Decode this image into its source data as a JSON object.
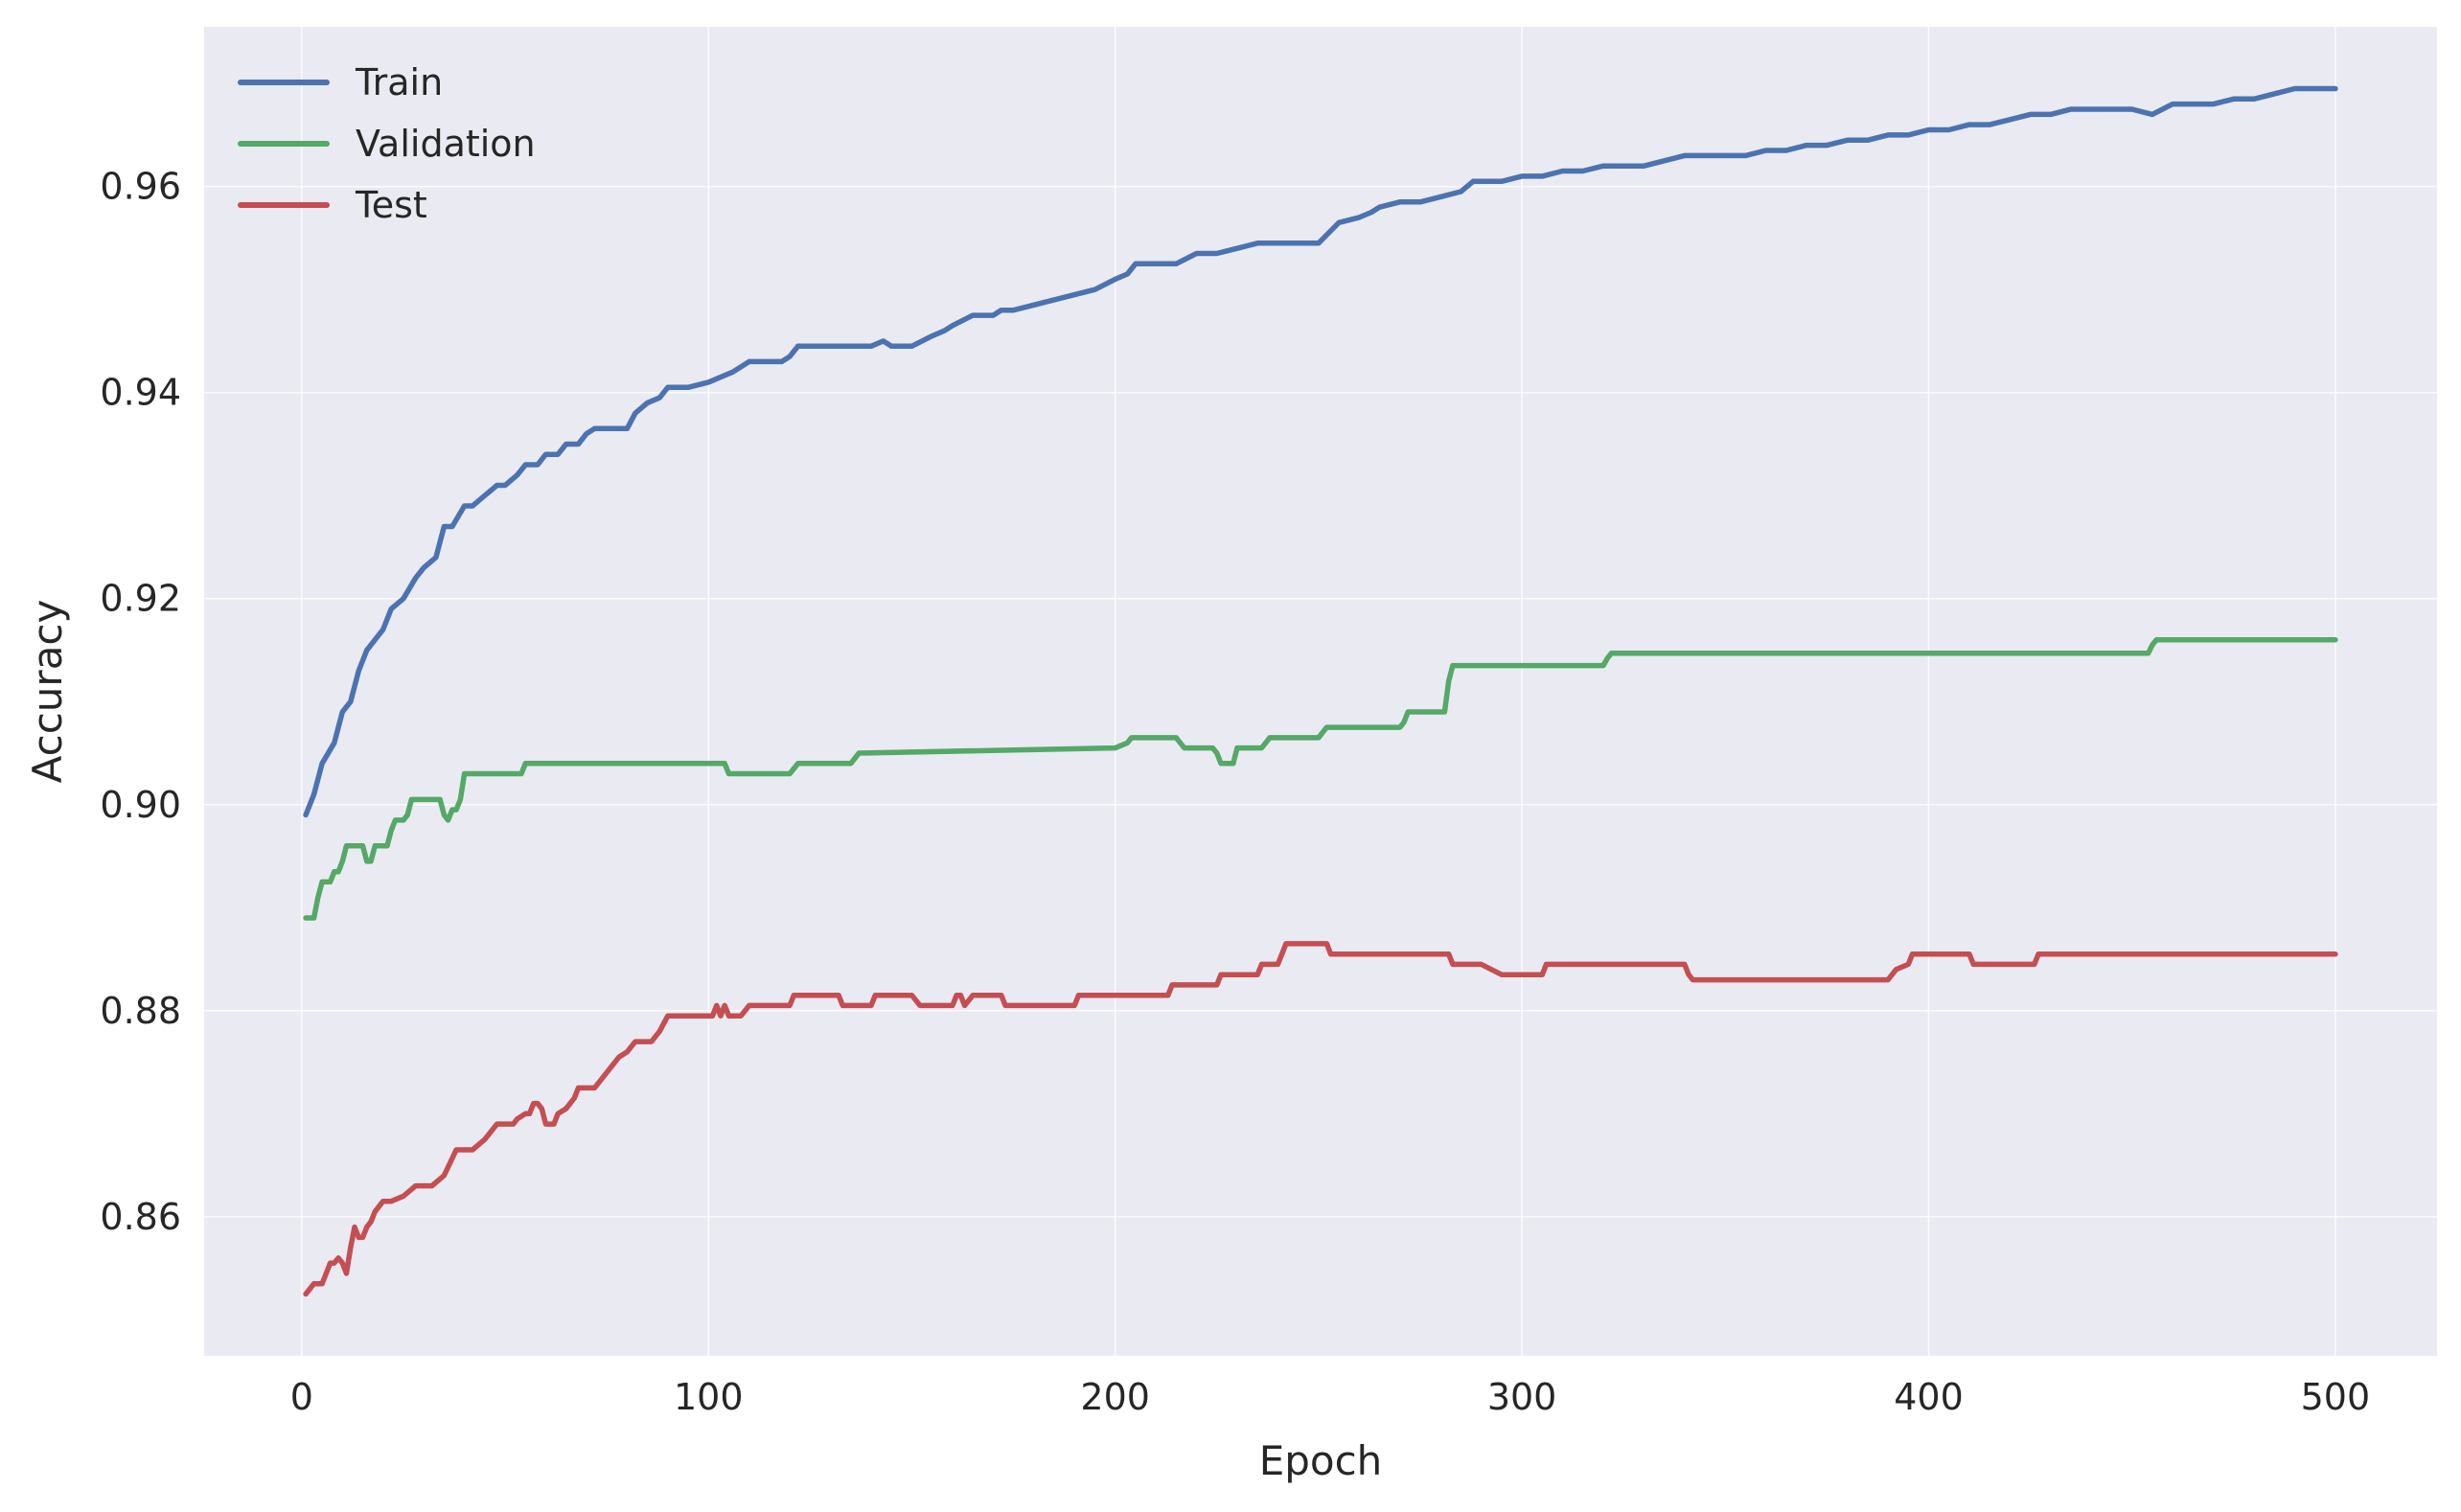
{
  "chart_data": {
    "type": "line",
    "title": "",
    "xlabel": "Epoch",
    "ylabel": "Accuracy",
    "xlim": [
      -24,
      525
    ],
    "ylim": [
      0.8465,
      0.9755
    ],
    "xticks": [
      0,
      100,
      200,
      300,
      400,
      500
    ],
    "yticks": [
      0.86,
      0.88,
      0.9,
      0.92,
      0.94,
      0.96
    ],
    "ytick_labels": [
      "0.86",
      "0.88",
      "0.90",
      "0.92",
      "0.94",
      "0.96"
    ],
    "grid": true,
    "legend_position": "top-left",
    "background_color": "#eaeaf2",
    "series": [
      {
        "name": "Train",
        "color": "#4c72b0",
        "x": [
          1,
          3,
          5,
          8,
          10,
          12,
          14,
          16,
          18,
          20,
          22,
          25,
          28,
          30,
          33,
          35,
          37,
          40,
          42,
          45,
          48,
          50,
          53,
          55,
          58,
          60,
          63,
          65,
          68,
          70,
          72,
          75,
          78,
          80,
          82,
          85,
          88,
          90,
          95,
          100,
          103,
          106,
          110,
          115,
          118,
          120,
          122,
          125,
          130,
          135,
          140,
          143,
          145,
          147,
          150,
          155,
          158,
          160,
          165,
          170,
          172,
          175,
          180,
          185,
          190,
          195,
          200,
          203,
          205,
          210,
          215,
          220,
          225,
          230,
          235,
          240,
          245,
          250,
          255,
          260,
          263,
          265,
          270,
          275,
          280,
          285,
          288,
          290,
          295,
          300,
          305,
          310,
          315,
          320,
          325,
          330,
          335,
          340,
          345,
          350,
          355,
          360,
          365,
          370,
          375,
          380,
          385,
          390,
          395,
          400,
          405,
          410,
          415,
          420,
          425,
          430,
          435,
          440,
          445,
          450,
          455,
          460,
          465,
          470,
          475,
          480,
          485,
          490,
          495,
          500
        ],
        "values": [
          0.899,
          0.901,
          0.904,
          0.906,
          0.909,
          0.91,
          0.913,
          0.915,
          0.916,
          0.917,
          0.919,
          0.92,
          0.922,
          0.923,
          0.924,
          0.927,
          0.927,
          0.929,
          0.929,
          0.93,
          0.931,
          0.931,
          0.932,
          0.933,
          0.933,
          0.934,
          0.934,
          0.935,
          0.935,
          0.936,
          0.9365,
          0.9365,
          0.9365,
          0.9365,
          0.938,
          0.939,
          0.9395,
          0.9405,
          0.9405,
          0.941,
          0.9415,
          0.942,
          0.943,
          0.943,
          0.943,
          0.9435,
          0.9445,
          0.9445,
          0.9445,
          0.9445,
          0.9445,
          0.945,
          0.9445,
          0.9445,
          0.9445,
          0.9455,
          0.946,
          0.9465,
          0.9475,
          0.9475,
          0.948,
          0.948,
          0.9485,
          0.949,
          0.9495,
          0.95,
          0.951,
          0.9515,
          0.9525,
          0.9525,
          0.9525,
          0.9535,
          0.9535,
          0.954,
          0.9545,
          0.9545,
          0.9545,
          0.9545,
          0.9565,
          0.957,
          0.9575,
          0.958,
          0.9585,
          0.9585,
          0.959,
          0.9595,
          0.9605,
          0.9605,
          0.9605,
          0.961,
          0.961,
          0.9615,
          0.9615,
          0.962,
          0.962,
          0.962,
          0.9625,
          0.963,
          0.963,
          0.963,
          0.963,
          0.9635,
          0.9635,
          0.964,
          0.964,
          0.9645,
          0.9645,
          0.965,
          0.965,
          0.9655,
          0.9655,
          0.966,
          0.966,
          0.9665,
          0.967,
          0.967,
          0.9675,
          0.9675,
          0.9675,
          0.9675,
          0.967,
          0.968,
          0.968,
          0.968,
          0.9685,
          0.9685,
          0.969,
          0.9695,
          0.9695,
          0.9695
        ]
      },
      {
        "name": "Validation",
        "color": "#55a868",
        "x": [
          1,
          2,
          3,
          4,
          5,
          6,
          7,
          8,
          9,
          10,
          11,
          12,
          13,
          14,
          15,
          16,
          17,
          18,
          19,
          20,
          21,
          22,
          23,
          24,
          25,
          26,
          27,
          28,
          29,
          30,
          31,
          32,
          33,
          34,
          35,
          36,
          37,
          38,
          39,
          40,
          41,
          42,
          43,
          44,
          45,
          46,
          47,
          48,
          49,
          50,
          51,
          52,
          53,
          54,
          55,
          56,
          60,
          70,
          80,
          90,
          100,
          104,
          105,
          106,
          120,
          121,
          122,
          135,
          136,
          137,
          200,
          203,
          204,
          205,
          215,
          216,
          217,
          224,
          225,
          226,
          229,
          230,
          231,
          236,
          237,
          238,
          250,
          251,
          252,
          270,
          271,
          272,
          281,
          282,
          283,
          284,
          300,
          310,
          320,
          321,
          322,
          340,
          380,
          420,
          454,
          455,
          456,
          480,
          500
        ],
        "values": [
          0.889,
          0.889,
          0.889,
          0.891,
          0.8925,
          0.8925,
          0.8925,
          0.8935,
          0.8935,
          0.8945,
          0.896,
          0.896,
          0.896,
          0.896,
          0.896,
          0.8945,
          0.8945,
          0.896,
          0.896,
          0.896,
          0.896,
          0.8975,
          0.8985,
          0.8985,
          0.8985,
          0.899,
          0.9005,
          0.9005,
          0.9005,
          0.9005,
          0.9005,
          0.9005,
          0.9005,
          0.9005,
          0.899,
          0.8985,
          0.8995,
          0.8995,
          0.9005,
          0.903,
          0.903,
          0.903,
          0.903,
          0.903,
          0.903,
          0.903,
          0.903,
          0.903,
          0.903,
          0.903,
          0.903,
          0.903,
          0.903,
          0.903,
          0.904,
          0.904,
          0.904,
          0.904,
          0.904,
          0.904,
          0.904,
          0.904,
          0.903,
          0.903,
          0.903,
          0.9035,
          0.904,
          0.904,
          0.9045,
          0.905,
          0.9055,
          0.906,
          0.9065,
          0.9065,
          0.9065,
          0.906,
          0.9055,
          0.9055,
          0.905,
          0.904,
          0.904,
          0.9055,
          0.9055,
          0.9055,
          0.906,
          0.9065,
          0.9065,
          0.907,
          0.9075,
          0.9075,
          0.908,
          0.909,
          0.909,
          0.912,
          0.9135,
          0.9135,
          0.9135,
          0.9135,
          0.9135,
          0.9142,
          0.9147,
          0.9147,
          0.9147,
          0.9147,
          0.9147,
          0.9155,
          0.916,
          0.916,
          0.916
        ]
      },
      {
        "name": "Test",
        "color": "#c44e52",
        "x": [
          1,
          3,
          5,
          7,
          8,
          9,
          10,
          11,
          12,
          13,
          14,
          15,
          16,
          17,
          18,
          20,
          22,
          25,
          28,
          30,
          31,
          32,
          35,
          38,
          40,
          42,
          45,
          48,
          50,
          51,
          52,
          53,
          55,
          56,
          57,
          58,
          59,
          60,
          62,
          63,
          65,
          67,
          68,
          70,
          72,
          74,
          76,
          78,
          80,
          82,
          84,
          86,
          88,
          90,
          95,
          100,
          101,
          102,
          103,
          104,
          105,
          106,
          108,
          110,
          115,
          118,
          120,
          121,
          122,
          125,
          130,
          132,
          133,
          135,
          140,
          141,
          142,
          145,
          150,
          152,
          153,
          155,
          158,
          160,
          161,
          162,
          163,
          165,
          170,
          172,
          173,
          175,
          180,
          185,
          190,
          191,
          192,
          195,
          200,
          210,
          213,
          214,
          215,
          220,
          225,
          226,
          227,
          230,
          235,
          236,
          237,
          240,
          241,
          242,
          250,
          252,
          253,
          255,
          260,
          270,
          282,
          283,
          284,
          290,
          295,
          296,
          297,
          305,
          306,
          307,
          320,
          340,
          341,
          342,
          360,
          390,
          391,
          392,
          395,
          396,
          397,
          410,
          411,
          412,
          425,
          426,
          427,
          440,
          480,
          500
        ],
        "values": [
          0.8525,
          0.8535,
          0.8535,
          0.8555,
          0.8555,
          0.856,
          0.8555,
          0.8545,
          0.857,
          0.859,
          0.858,
          0.858,
          0.859,
          0.8595,
          0.8605,
          0.8615,
          0.8615,
          0.862,
          0.863,
          0.863,
          0.863,
          0.863,
          0.864,
          0.8665,
          0.8665,
          0.8665,
          0.8675,
          0.869,
          0.869,
          0.869,
          0.869,
          0.8695,
          0.87,
          0.87,
          0.871,
          0.871,
          0.8705,
          0.869,
          0.869,
          0.87,
          0.8705,
          0.8715,
          0.8725,
          0.8725,
          0.8725,
          0.8735,
          0.8745,
          0.8755,
          0.876,
          0.877,
          0.877,
          0.877,
          0.878,
          0.8795,
          0.8795,
          0.8795,
          0.8795,
          0.8805,
          0.8795,
          0.8805,
          0.8795,
          0.8795,
          0.8795,
          0.8805,
          0.8805,
          0.8805,
          0.8805,
          0.8815,
          0.8815,
          0.8815,
          0.8815,
          0.8815,
          0.8805,
          0.8805,
          0.8805,
          0.8815,
          0.8815,
          0.8815,
          0.8815,
          0.8805,
          0.8805,
          0.8805,
          0.8805,
          0.8805,
          0.8815,
          0.8815,
          0.8805,
          0.8815,
          0.8815,
          0.8815,
          0.8805,
          0.8805,
          0.8805,
          0.8805,
          0.8805,
          0.8815,
          0.8815,
          0.8815,
          0.8815,
          0.8815,
          0.8815,
          0.8825,
          0.8825,
          0.8825,
          0.8825,
          0.8835,
          0.8835,
          0.8835,
          0.8835,
          0.8845,
          0.8845,
          0.8845,
          0.8855,
          0.8865,
          0.8865,
          0.8865,
          0.8855,
          0.8855,
          0.8855,
          0.8855,
          0.8855,
          0.8845,
          0.8845,
          0.8845,
          0.8835,
          0.8835,
          0.8835,
          0.8835,
          0.8845,
          0.8845,
          0.8845,
          0.8845,
          0.8835,
          0.883,
          0.883,
          0.883,
          0.8835,
          0.884,
          0.8845,
          0.8855,
          0.8855,
          0.8855,
          0.8845,
          0.8845,
          0.8845,
          0.8845,
          0.8855,
          0.8855,
          0.8855,
          0.8855
        ]
      }
    ]
  }
}
